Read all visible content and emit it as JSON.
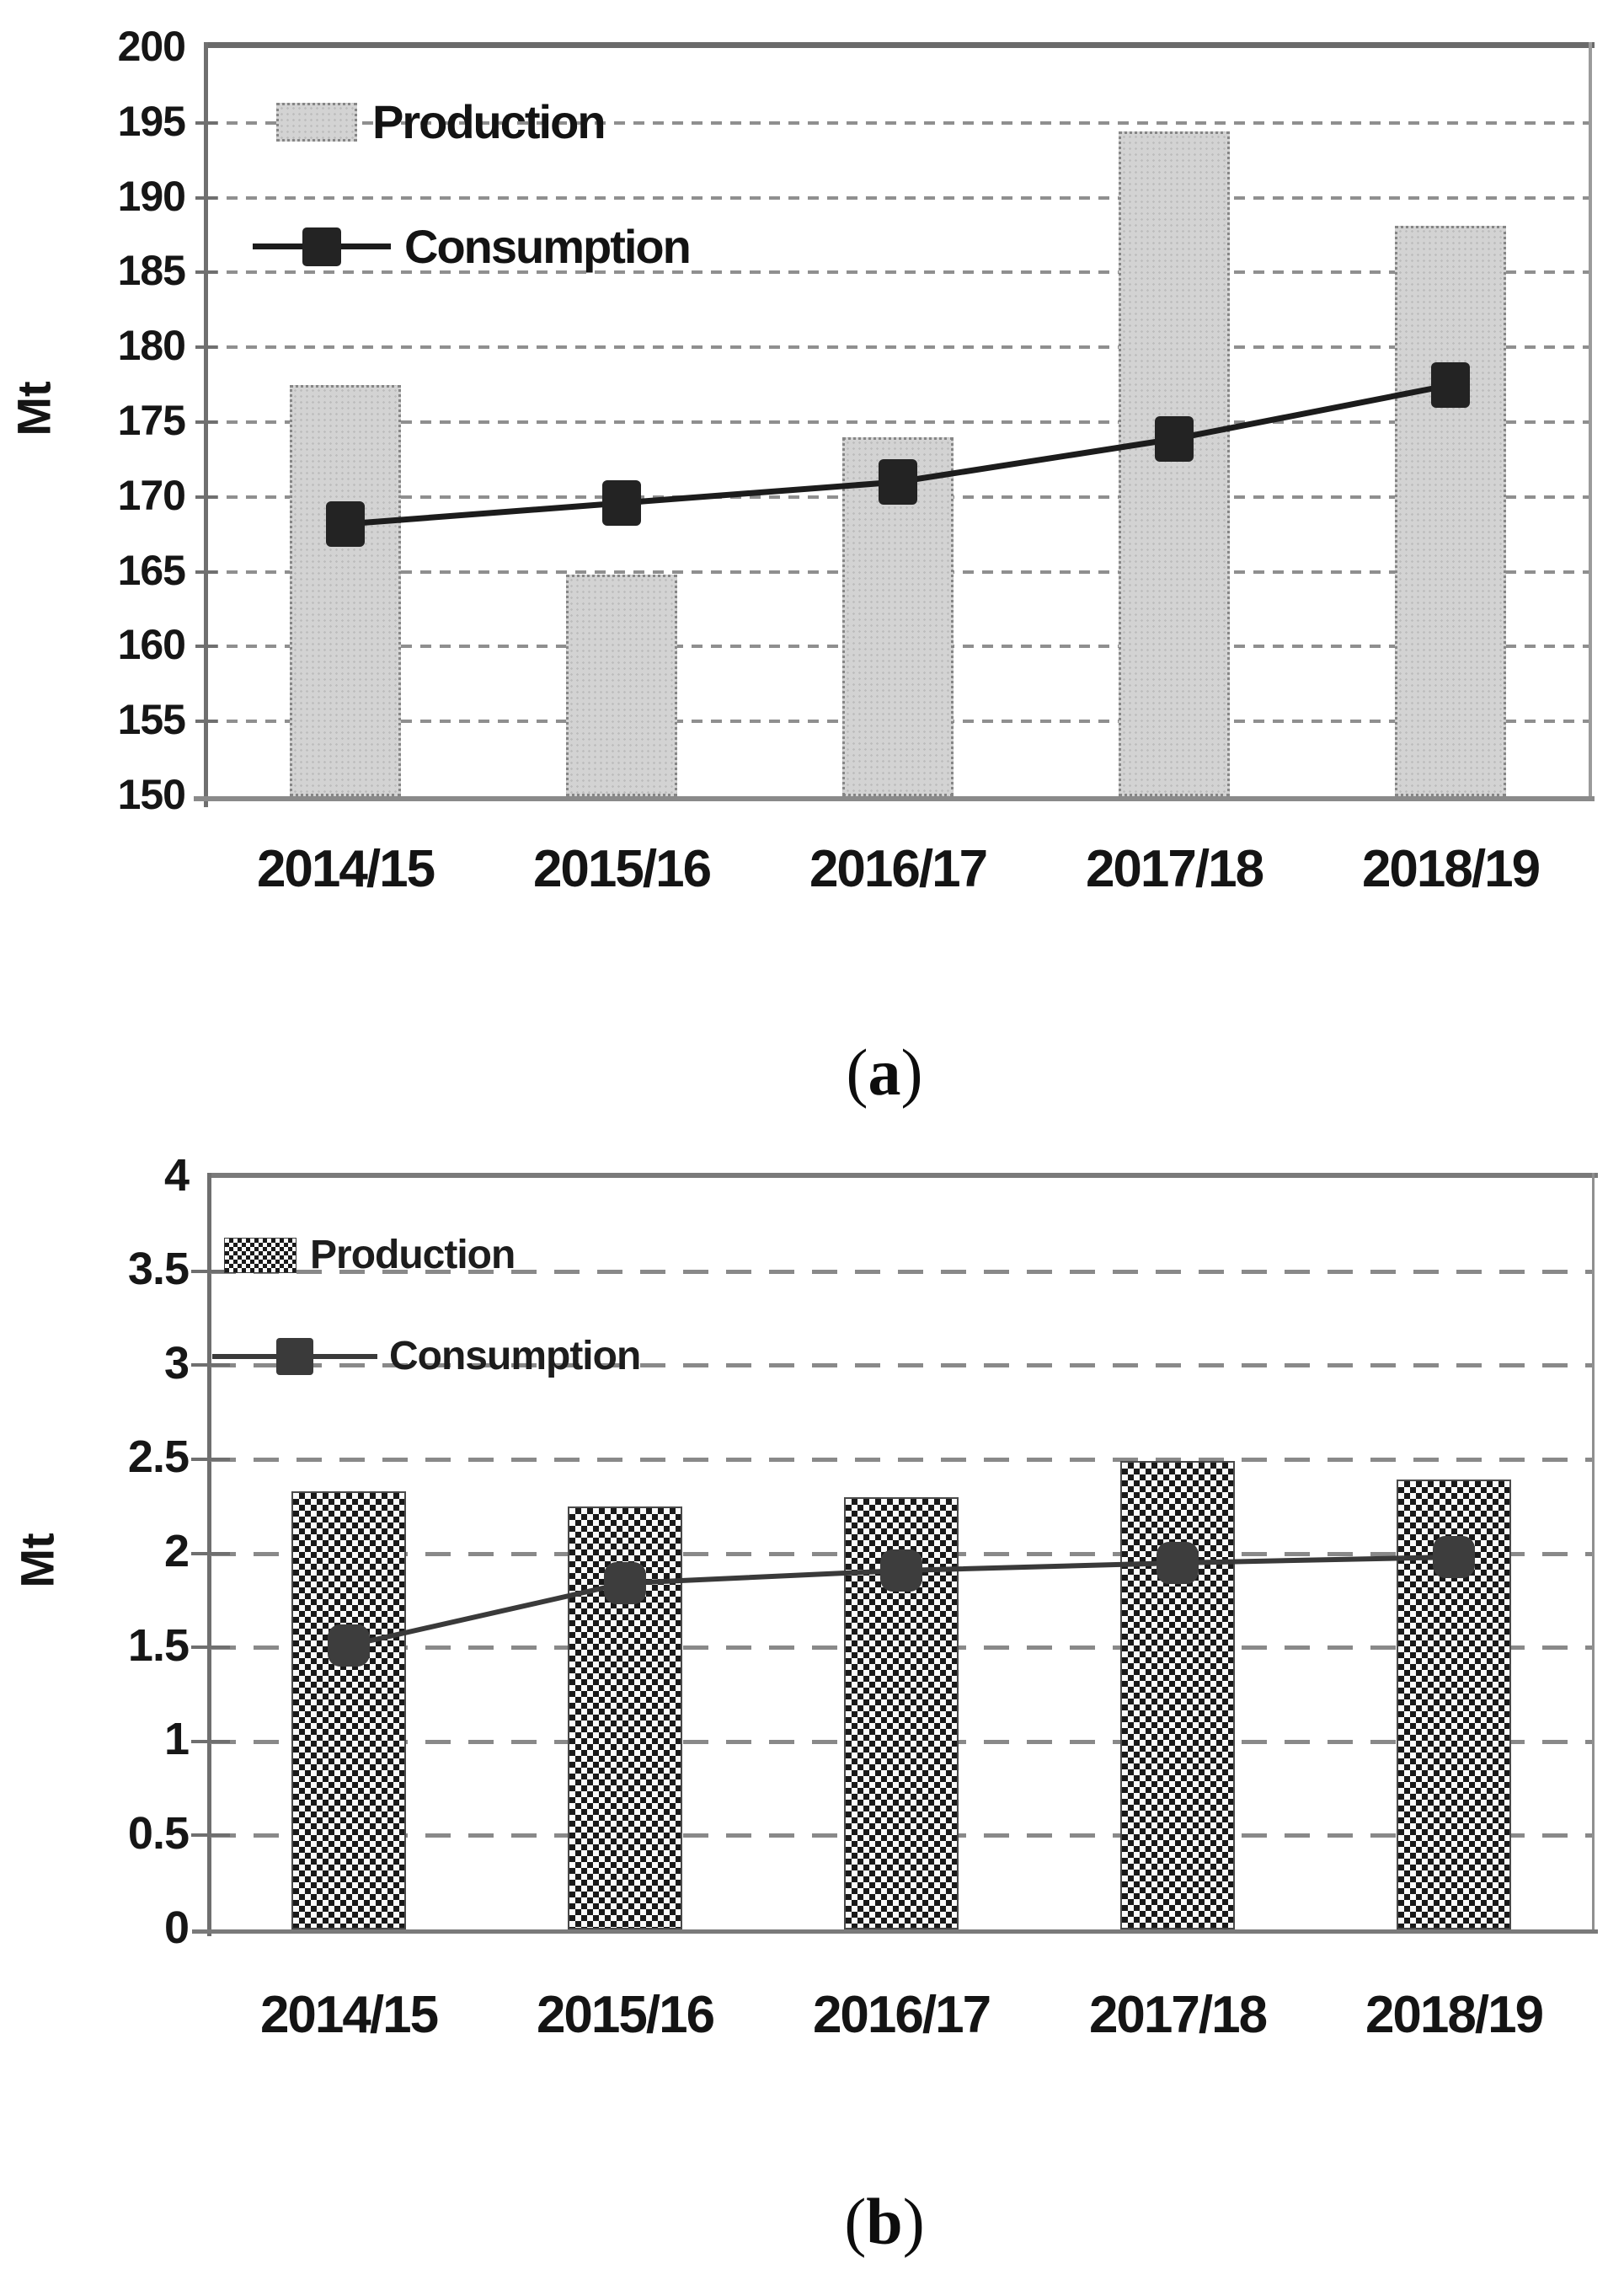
{
  "figure": {
    "background": "#ffffff",
    "captions": [
      {
        "open": "(",
        "letter": "a",
        "close": ")"
      },
      {
        "open": "(",
        "letter": "b",
        "close": ")"
      }
    ]
  },
  "chart_data": [
    {
      "id": "a",
      "type": "bar",
      "title": "",
      "xlabel": "",
      "ylabel": "Mt",
      "categories": [
        "2014/15",
        "2015/16",
        "2016/17",
        "2017/18",
        "2018/19"
      ],
      "series": [
        {
          "name": "Production",
          "type": "bar",
          "color": "#d3d3d3",
          "pattern": "dotted-gray",
          "values": [
            177.5,
            164.8,
            174.0,
            194.4,
            188.1
          ]
        },
        {
          "name": "Consumption",
          "type": "line",
          "color": "#1c1c1c",
          "marker": "square",
          "values": [
            168.2,
            169.6,
            171.0,
            173.9,
            177.5
          ]
        }
      ],
      "ylim": [
        150,
        200
      ],
      "ytick_step": 5,
      "yticks": [
        "200",
        "195",
        "190",
        "185",
        "180",
        "175",
        "170",
        "165",
        "160",
        "155",
        "150"
      ],
      "grid": "dashed-horizontal",
      "legend_position": "top-left"
    },
    {
      "id": "b",
      "type": "bar",
      "title": "",
      "xlabel": "",
      "ylabel": "Mt",
      "categories": [
        "2014/15",
        "2015/16",
        "2016/17",
        "2017/18",
        "2018/19"
      ],
      "series": [
        {
          "name": "Production",
          "type": "bar",
          "color": "#1a1a1a",
          "pattern": "checkerboard",
          "values": [
            2.33,
            2.25,
            2.3,
            2.49,
            2.39
          ]
        },
        {
          "name": "Consumption",
          "type": "line",
          "color": "#3a3a3a",
          "marker": "rounded-square",
          "values": [
            1.51,
            1.84,
            1.91,
            1.95,
            1.98
          ]
        }
      ],
      "ylim": [
        0,
        4
      ],
      "ytick_step": 0.5,
      "yticks": [
        "4",
        "3.5",
        "3",
        "2.5",
        "2",
        "1.5",
        "1",
        "0.5",
        "0"
      ],
      "grid": "dashed-horizontal",
      "legend_position": "top-left"
    }
  ]
}
